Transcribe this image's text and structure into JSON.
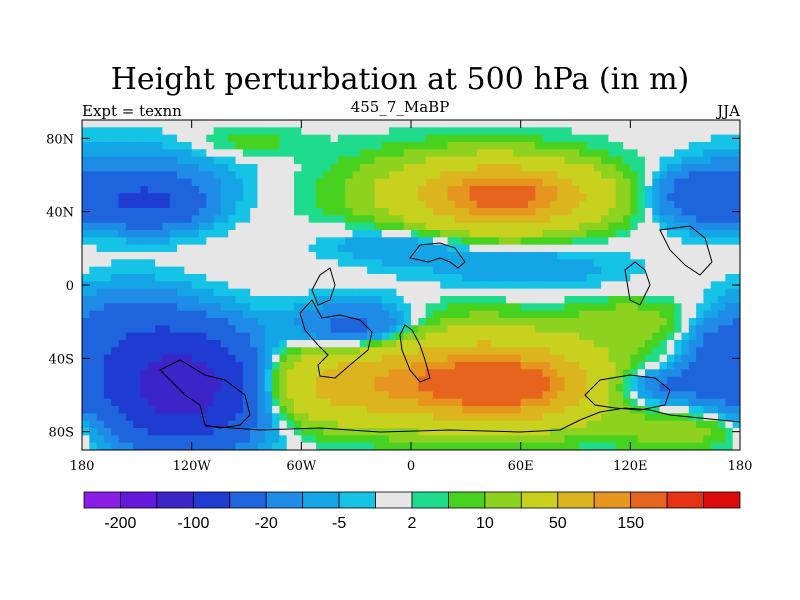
{
  "chart_data": {
    "type": "heatmap",
    "title": "Height perturbation at 500 hPa (in m)",
    "subtitle": "455_7_MaBP",
    "left_string": "Expt = texnn",
    "right_string": "JJA",
    "x_axis": {
      "range": [
        -180,
        180
      ],
      "ticks": [
        -180,
        -120,
        -60,
        0,
        60,
        120,
        180
      ],
      "tick_labels": [
        "180",
        "120W",
        "60W",
        "0",
        "60E",
        "120E",
        "180"
      ]
    },
    "y_axis": {
      "range": [
        -90,
        90
      ],
      "ticks": [
        80,
        40,
        0,
        -40,
        -80
      ],
      "tick_labels": [
        "80N",
        "40N",
        "0",
        "40S",
        "80S"
      ]
    },
    "colorbar": {
      "colors": [
        "#8a1ee6",
        "#6418dc",
        "#3c24c8",
        "#1e3cd2",
        "#1e64dc",
        "#1e8ce6",
        "#14a5e6",
        "#14c3e6",
        "#e6e6e6",
        "#1edc8c",
        "#46d21e",
        "#8cd21e",
        "#c8d21e",
        "#dcb41e",
        "#e6961e",
        "#e6641e",
        "#e63214",
        "#dc0a0a"
      ],
      "labels": [
        "-200",
        "-100",
        "-20",
        "-5",
        "2",
        "10",
        "50",
        "150"
      ]
    },
    "field_blobs": [
      {
        "lon": -142,
        "lat": 45,
        "rx": 26,
        "ry": 13,
        "amp": -45
      },
      {
        "lon": -150,
        "lat": 55,
        "rx": 55,
        "ry": 22,
        "amp": -15
      },
      {
        "lon": 165,
        "lat": 48,
        "rx": 30,
        "ry": 14,
        "amp": -40
      },
      {
        "lon": 52,
        "lat": 48,
        "rx": 45,
        "ry": 16,
        "amp": 95
      },
      {
        "lon": 35,
        "lat": 52,
        "rx": 70,
        "ry": 22,
        "amp": 25
      },
      {
        "lon": -90,
        "lat": 78,
        "rx": 30,
        "ry": 8,
        "amp": 8
      },
      {
        "lon": -8,
        "lat": 22,
        "rx": 38,
        "ry": 10,
        "amp": -12
      },
      {
        "lon": 60,
        "lat": 10,
        "rx": 55,
        "ry": 14,
        "amp": -10
      },
      {
        "lon": -125,
        "lat": -55,
        "rx": 40,
        "ry": 28,
        "amp": -140
      },
      {
        "lon": -155,
        "lat": -20,
        "rx": 30,
        "ry": 20,
        "amp": -20
      },
      {
        "lon": -30,
        "lat": -25,
        "rx": 35,
        "ry": 15,
        "amp": -40
      },
      {
        "lon": 50,
        "lat": -55,
        "rx": 50,
        "ry": 20,
        "amp": 120
      },
      {
        "lon": -30,
        "lat": -55,
        "rx": 55,
        "ry": 20,
        "amp": 60
      },
      {
        "lon": 10,
        "lat": -35,
        "rx": 80,
        "ry": 22,
        "amp": 20
      },
      {
        "lon": 135,
        "lat": -55,
        "rx": 30,
        "ry": 10,
        "amp": -25
      },
      {
        "lon": 170,
        "lat": -40,
        "rx": 20,
        "ry": 20,
        "amp": -30
      },
      {
        "lon": 150,
        "lat": -80,
        "rx": 40,
        "ry": 10,
        "amp": 15
      },
      {
        "lon": 120,
        "lat": -20,
        "rx": 30,
        "ry": 12,
        "amp": 15
      }
    ]
  }
}
